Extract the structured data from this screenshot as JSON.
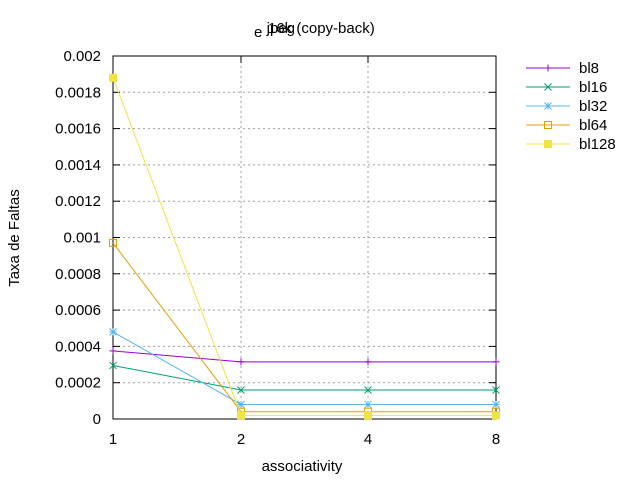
{
  "chart_data": {
    "type": "line",
    "title_main": "jpeg",
    "title_sub": "e",
    "title_rest": "16k (copy-back)",
    "xlabel": "associativity",
    "ylabel": "Taxa de Faltas",
    "x": [
      1,
      2,
      4,
      8
    ],
    "x_tick_labels": [
      "1",
      "2",
      "4",
      "8"
    ],
    "y_tick_labels": [
      "0",
      "0.0002",
      "0.0004",
      "0.0006",
      "0.0008",
      "0.001",
      "0.0012",
      "0.0014",
      "0.0016",
      "0.0018",
      "0.002"
    ],
    "ylim": [
      0,
      0.002
    ],
    "grid": true,
    "legend_position": "outside-right-top",
    "series": [
      {
        "name": "bl8",
        "color": "#9400d3",
        "marker": "plus",
        "values": [
          0.000375,
          0.000315,
          0.000315,
          0.000315
        ]
      },
      {
        "name": "bl16",
        "color": "#009e73",
        "marker": "cross",
        "values": [
          0.000295,
          0.00016,
          0.00016,
          0.00016
        ]
      },
      {
        "name": "bl32",
        "color": "#56b4e9",
        "marker": "star",
        "values": [
          0.00048,
          8e-05,
          8e-05,
          8e-05
        ]
      },
      {
        "name": "bl64",
        "color": "#e69f00",
        "marker": "square-open",
        "values": [
          0.00097,
          4e-05,
          4e-05,
          4e-05
        ]
      },
      {
        "name": "bl128",
        "color": "#f0e442",
        "marker": "square-filled",
        "values": [
          0.00188,
          2e-05,
          2e-05,
          2e-05
        ]
      }
    ]
  }
}
